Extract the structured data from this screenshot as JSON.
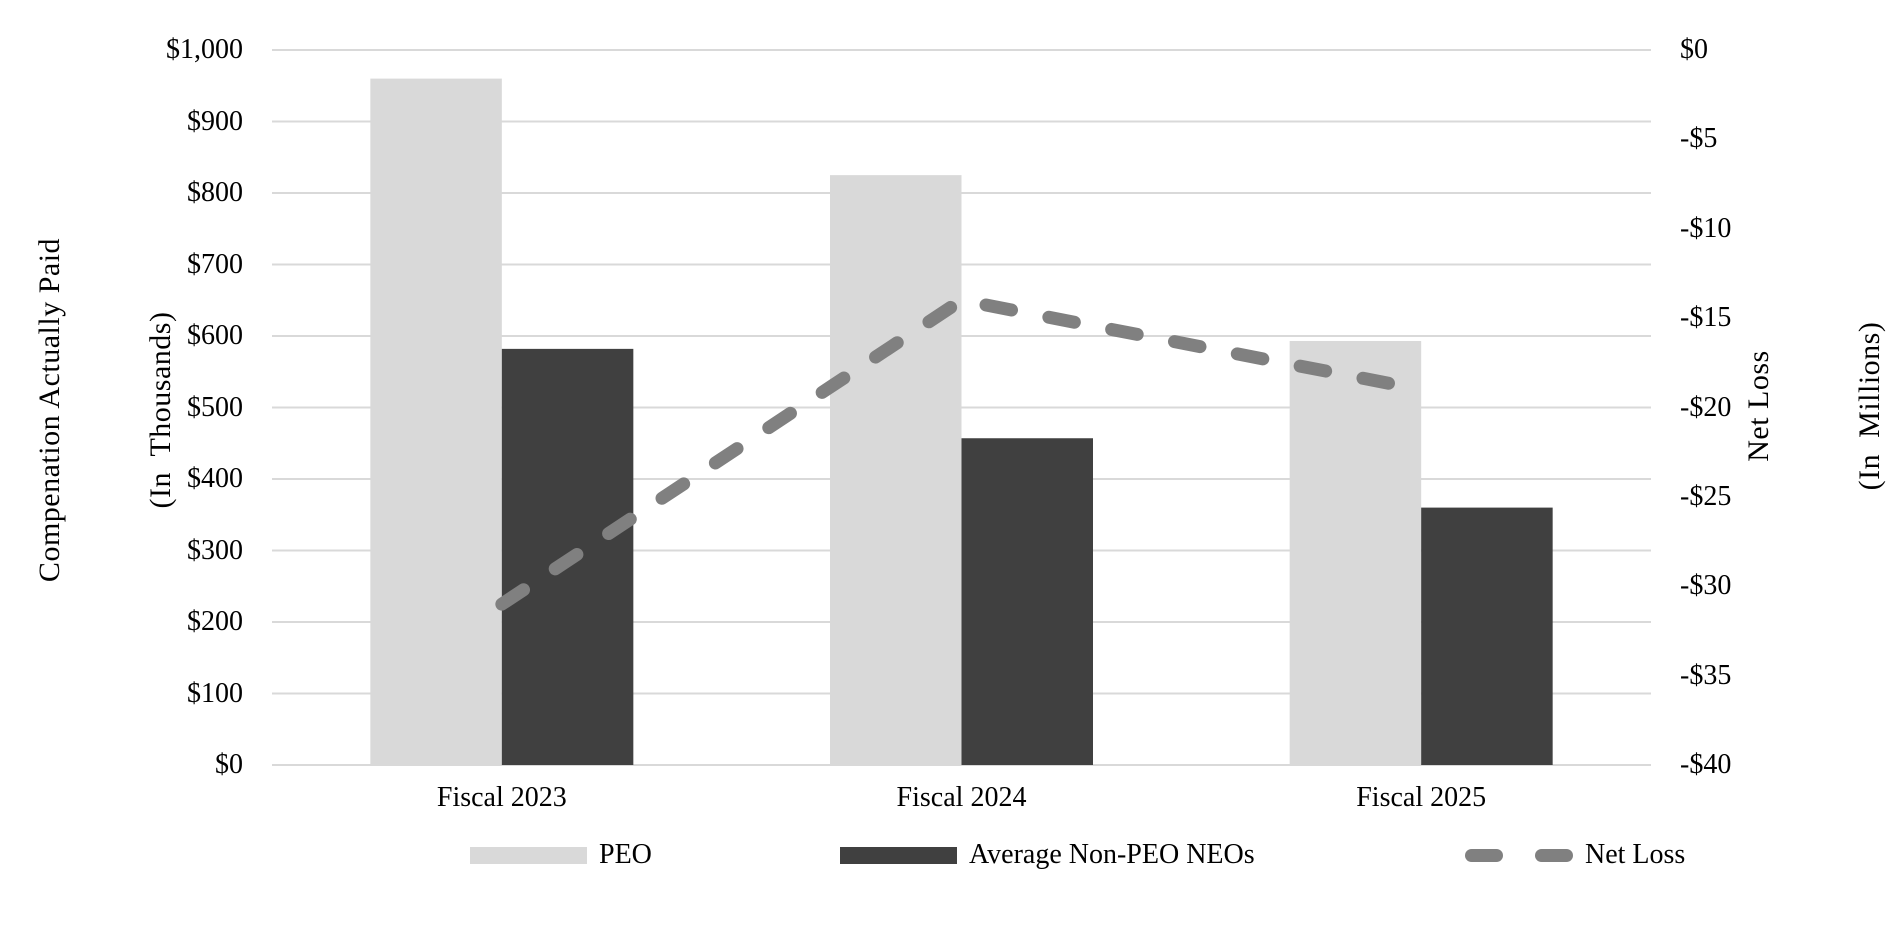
{
  "chart_data": {
    "type": "combo",
    "subtype": "clustered-bar-with-dashed-line",
    "categories": [
      "Fiscal 2023",
      "Fiscal 2024",
      "Fiscal 2025"
    ],
    "series": [
      {
        "name": "PEO",
        "type": "bar",
        "axis": "left",
        "color": "#d9d9d9",
        "values": [
          960,
          825,
          593
        ]
      },
      {
        "name": "Average Non-PEO NEOs",
        "type": "bar",
        "axis": "left",
        "color": "#404040",
        "values": [
          582,
          457,
          360
        ]
      },
      {
        "name": "Net Loss",
        "type": "line",
        "axis": "right",
        "color": "#808080",
        "dashed": true,
        "values": [
          -31,
          -14,
          -19
        ]
      }
    ],
    "left_axis": {
      "title": [
        "Compenation Actually Paid",
        "(In  Thousands)"
      ],
      "min": 0,
      "max": 1000,
      "tick_step": 100,
      "tick_labels": [
        "$1,000",
        "$900",
        "$800",
        "$700",
        "$600",
        "$500",
        "$400",
        "$300",
        "$200",
        "$100",
        "$0"
      ]
    },
    "right_axis": {
      "title": [
        "Net Loss",
        "(In  Millions)"
      ],
      "min": -40,
      "max": 0,
      "tick_step": 5,
      "tick_labels": [
        "$0",
        "-$5",
        "-$10",
        "-$15",
        "-$20",
        "-$25",
        "-$30",
        "-$35",
        "-$40"
      ]
    },
    "gridlines": {
      "show": true,
      "color": "#d9d9d9"
    },
    "legend_position": "bottom",
    "background_color": "#ffffff",
    "text_color": "#000000"
  }
}
